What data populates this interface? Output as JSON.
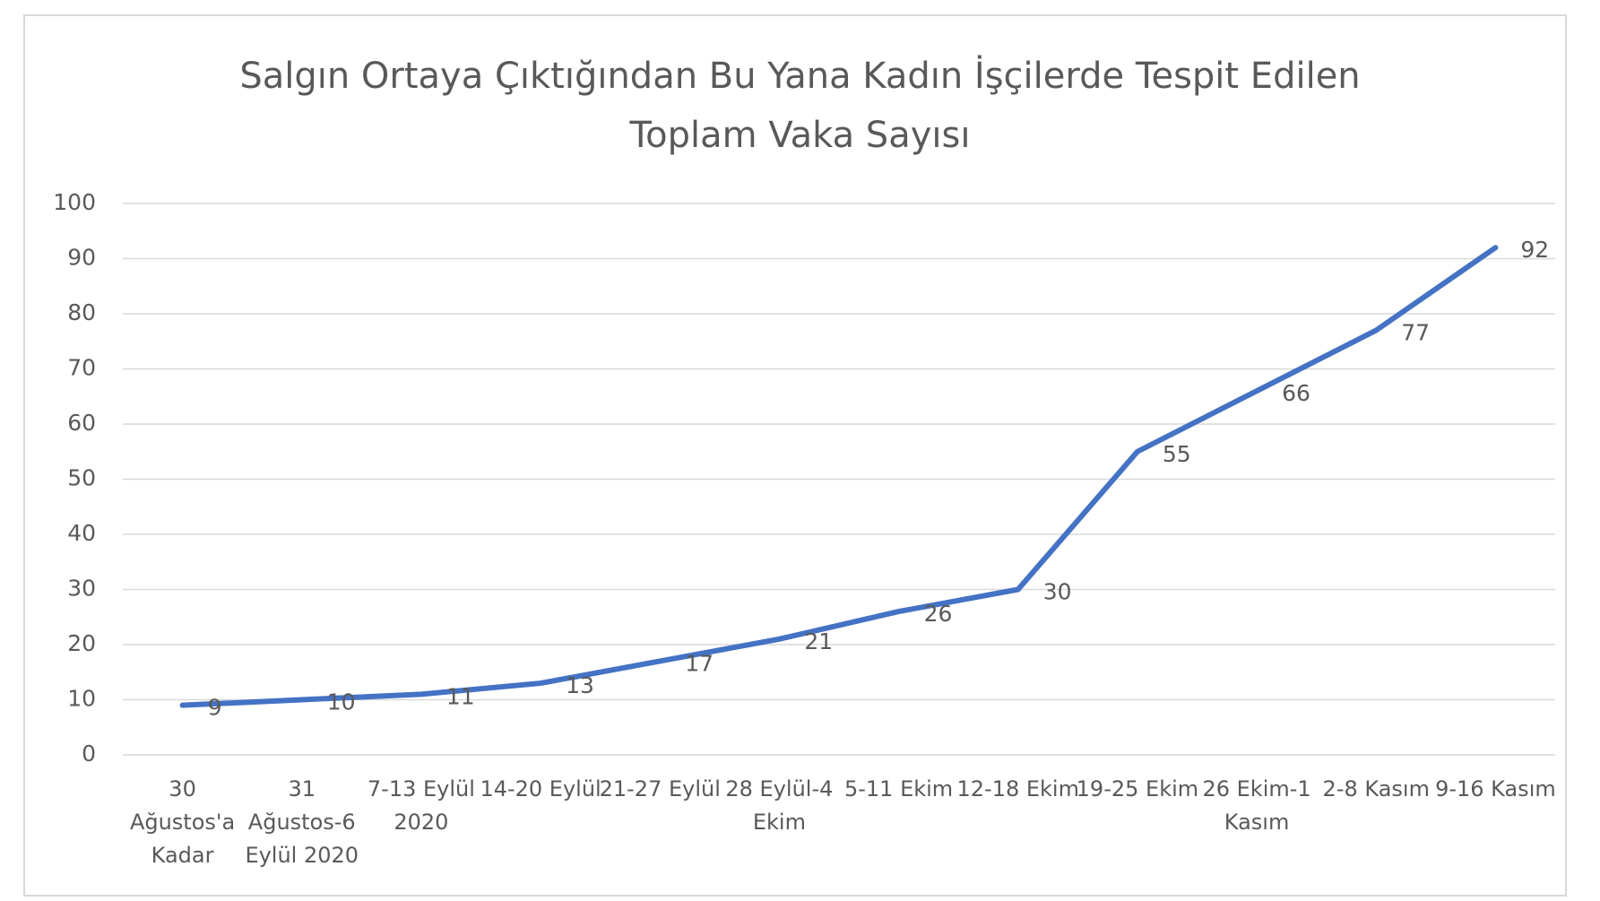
{
  "chart_data": {
    "type": "line",
    "title": "Salgın Ortaya Çıktığından Bu Yana Kadın İşçilerde Tespit Edilen Toplam Vaka Sayısı",
    "categories": [
      "30 Ağustos'a Kadar",
      "31 Ağustos-6 Eylül 2020",
      "7-13 Eylül 2020",
      "14-20 Eylül",
      "21-27 Eylül",
      "28 Eylül-4 Ekim",
      "5-11 Ekim",
      "12-18 Ekim",
      "19-25 Ekim",
      "26 Ekim-1 Kasım",
      "2-8 Kasım",
      "9-16 Kasım"
    ],
    "values": [
      9,
      10,
      11,
      13,
      17,
      21,
      26,
      30,
      55,
      66,
      77,
      92
    ],
    "color": "#4472c4",
    "ylim": [
      0,
      100
    ],
    "yticks": [
      0,
      10,
      20,
      30,
      40,
      50,
      60,
      70,
      80,
      90,
      100
    ],
    "grid": true
  }
}
